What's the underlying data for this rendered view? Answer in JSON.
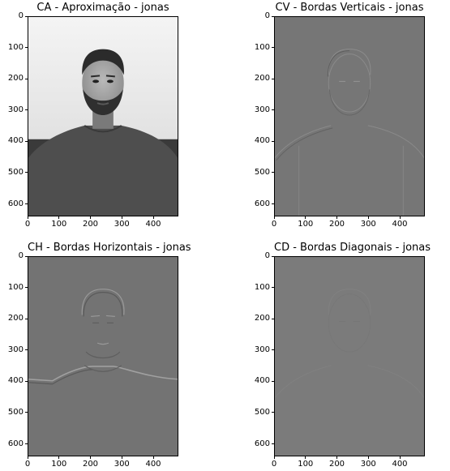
{
  "panels": [
    {
      "id": "ca",
      "title": "CA - Aproximação - jonas",
      "image_kind": "approximation",
      "ylim": [
        640,
        0
      ],
      "xlim": [
        0,
        480
      ],
      "x_ticks": [
        "0",
        "100",
        "200",
        "300",
        "400"
      ],
      "y_ticks": [
        "0",
        "100",
        "200",
        "300",
        "400",
        "500",
        "600"
      ]
    },
    {
      "id": "cv",
      "title": "CV - Bordas Verticais - jonas",
      "image_kind": "vertical-edges",
      "ylim": [
        640,
        0
      ],
      "xlim": [
        0,
        480
      ],
      "x_ticks": [
        "0",
        "100",
        "200",
        "300",
        "400"
      ],
      "y_ticks": [
        "0",
        "100",
        "200",
        "300",
        "400",
        "500",
        "600"
      ]
    },
    {
      "id": "ch",
      "title": "CH - Bordas Horizontais - jonas",
      "image_kind": "horizontal-edges",
      "ylim": [
        640,
        0
      ],
      "xlim": [
        0,
        480
      ],
      "x_ticks": [
        "0",
        "100",
        "200",
        "300",
        "400"
      ],
      "y_ticks": [
        "0",
        "100",
        "200",
        "300",
        "400",
        "500",
        "600"
      ]
    },
    {
      "id": "cd",
      "title": "CD - Bordas Diagonais - jonas",
      "image_kind": "diagonal-edges",
      "ylim": [
        640,
        0
      ],
      "xlim": [
        0,
        480
      ],
      "x_ticks": [
        "0",
        "100",
        "200",
        "300",
        "400"
      ],
      "y_ticks": [
        "0",
        "100",
        "200",
        "300",
        "400",
        "500",
        "600"
      ]
    }
  ]
}
